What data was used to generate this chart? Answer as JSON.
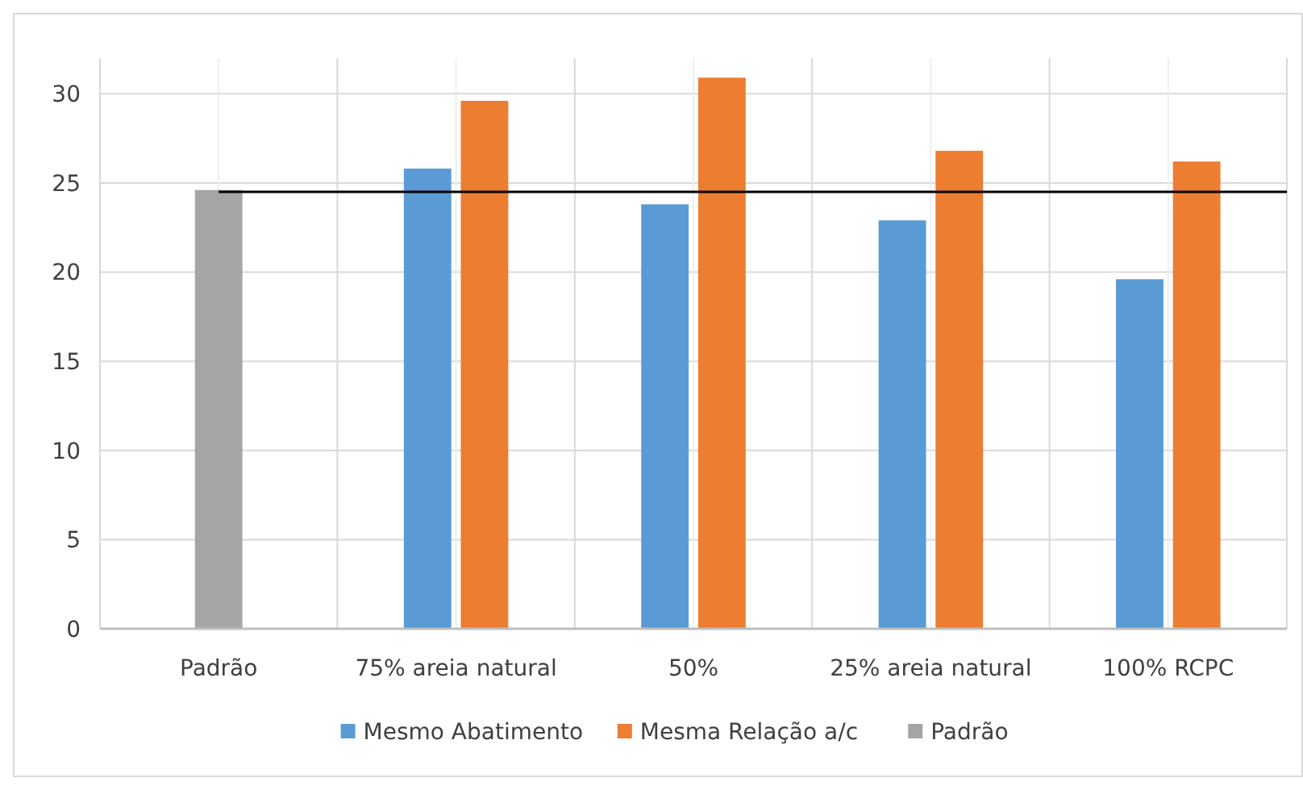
{
  "chart_data": {
    "type": "bar",
    "categories": [
      "Padrão",
      "75% areia natural",
      "50%",
      "25% areia natural",
      "100% RCPC"
    ],
    "series": [
      {
        "name": "Mesmo Abatimento",
        "color": "#5b9bd5",
        "values": [
          null,
          25.8,
          23.8,
          22.9,
          19.6
        ]
      },
      {
        "name": "Mesma Relação a/c",
        "color": "#ed7d31",
        "values": [
          null,
          29.6,
          30.9,
          26.8,
          26.2
        ]
      },
      {
        "name": "Padrão",
        "color": "#a5a5a5",
        "values": [
          24.6,
          null,
          null,
          null,
          null
        ]
      }
    ],
    "ylim": [
      0,
      32
    ],
    "yticks": [
      0,
      5,
      10,
      15,
      20,
      25,
      30
    ],
    "grid": true,
    "legend": "bottom",
    "ref_lines": [
      {
        "axis": "y",
        "value": 24.5,
        "color": "#000000"
      }
    ]
  }
}
